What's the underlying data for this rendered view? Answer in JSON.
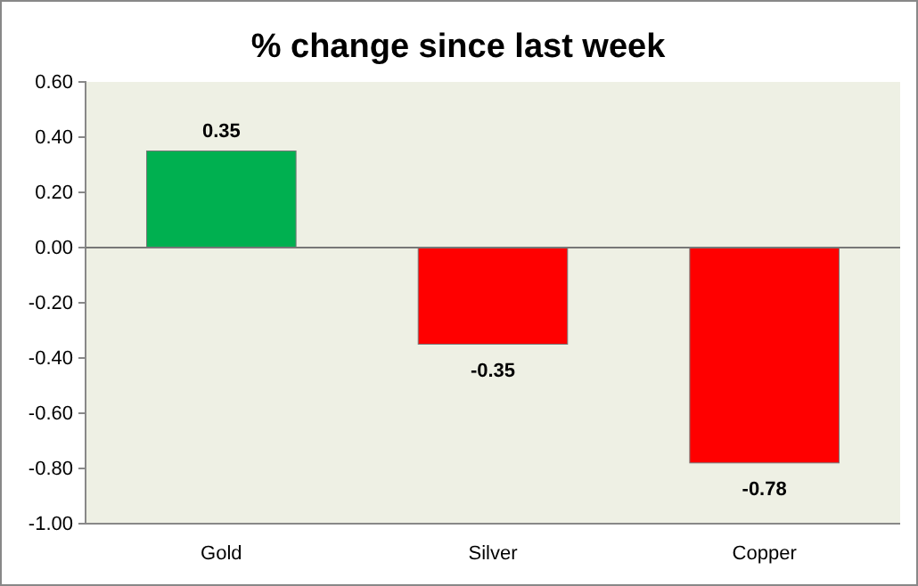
{
  "chart_data": {
    "type": "bar",
    "title": "% change since last week",
    "categories": [
      "Gold",
      "Silver",
      "Copper"
    ],
    "values": [
      0.35,
      -0.35,
      -0.78
    ],
    "colors": [
      "#00b050",
      "#ff0000",
      "#ff0000"
    ],
    "ylim": [
      -1,
      0.6
    ],
    "yticks": [
      {
        "value": -1,
        "label": "-1.00"
      },
      {
        "value": -0.8,
        "label": "-0.80"
      },
      {
        "value": -0.6,
        "label": "-0.60"
      },
      {
        "value": -0.4,
        "label": "-0.40"
      },
      {
        "value": -0.2,
        "label": "-0.20"
      },
      {
        "value": 0,
        "label": "0.00"
      },
      {
        "value": 0.2,
        "label": "0.20"
      },
      {
        "value": 0.4,
        "label": "0.40"
      },
      {
        "value": 0.6,
        "label": "0.60"
      }
    ],
    "data_labels": true
  }
}
